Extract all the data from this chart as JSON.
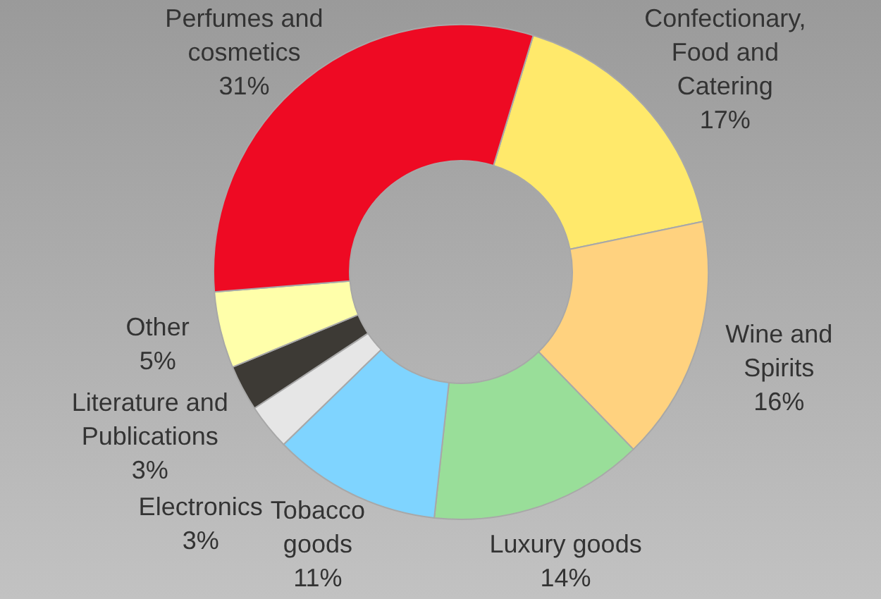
{
  "chart_data": {
    "type": "donut",
    "categories": [
      "Confectionary, Food and Catering",
      "Wine and Spirits",
      "Luxury goods",
      "Tobacco goods",
      "Electronics",
      "Literature and Publications",
      "Other",
      "Perfumes and cosmetics"
    ],
    "values": [
      17,
      16,
      14,
      11,
      3,
      3,
      5,
      31
    ],
    "value_labels": [
      "17%",
      "16%",
      "14%",
      "11%",
      "3%",
      "3%",
      "5%",
      "31%"
    ],
    "colors": [
      "#ffe96b",
      "#ffd27f",
      "#99de99",
      "#7fd4ff",
      "#e6e6e6",
      "#3d3a35",
      "#ffffaa",
      "#ee0a23"
    ],
    "legend": false
  }
}
